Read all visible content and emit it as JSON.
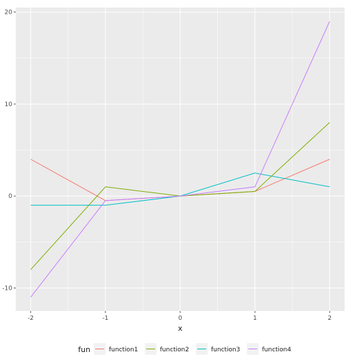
{
  "chart_data": {
    "type": "line",
    "title": "",
    "xlabel": "x",
    "ylabel": "",
    "x": [
      -2,
      -1,
      0,
      1,
      2
    ],
    "xlim": [
      -2.2,
      2.2
    ],
    "ylim": [
      -12.5,
      20.5
    ],
    "x_ticks": [
      -2,
      -1,
      0,
      1,
      2
    ],
    "y_ticks": [
      -10,
      0,
      10,
      20
    ],
    "x_tick_labels": [
      "-2",
      "-1",
      "0",
      "1",
      "2"
    ],
    "y_tick_labels": [
      "-10",
      "0",
      "10",
      "20"
    ],
    "grid": true,
    "legend": {
      "title": "fun",
      "position": "bottom"
    },
    "series": [
      {
        "name": "function1",
        "color": "#F8766D",
        "values": [
          4,
          -0.5,
          0,
          0.5,
          4
        ]
      },
      {
        "name": "function2",
        "color": "#7CAE00",
        "values": [
          -8,
          1,
          0,
          0.5,
          8
        ]
      },
      {
        "name": "function3",
        "color": "#00BFC4",
        "values": [
          -1,
          -1,
          0,
          2.5,
          1
        ]
      },
      {
        "name": "function4",
        "color": "#C77CFF",
        "values": [
          -11,
          -0.5,
          0,
          1,
          19
        ]
      }
    ]
  }
}
